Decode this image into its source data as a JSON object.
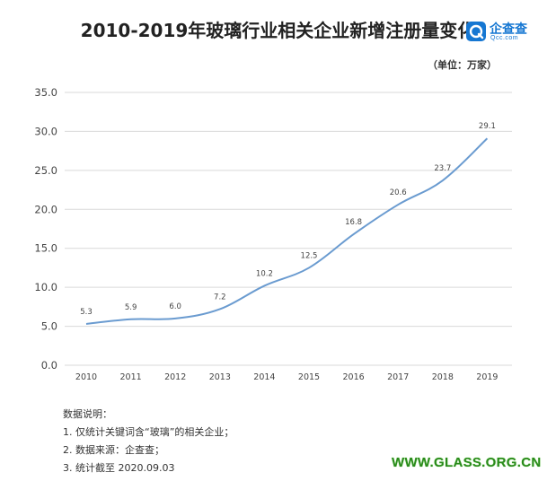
{
  "chart_data": {
    "type": "line",
    "title": "2010-2019年玻璃行业相关企业新增注册量变化",
    "unit_label": "（单位：万家）",
    "categories": [
      "2010",
      "2011",
      "2012",
      "2013",
      "2014",
      "2015",
      "2016",
      "2017",
      "2018",
      "2019"
    ],
    "series": [
      {
        "name": "新增注册量",
        "values": [
          5.3,
          5.9,
          6.0,
          7.2,
          10.2,
          12.5,
          16.8,
          20.6,
          23.7,
          29.1
        ],
        "labels": [
          "5.3",
          "5.9",
          "6.0",
          "7.2",
          "10.2",
          "12.5",
          "16.8",
          "20.6",
          "23.7",
          "29.1"
        ]
      }
    ],
    "ylim": [
      0,
      35
    ],
    "yticks": [
      0,
      5,
      10,
      15,
      20,
      25,
      30,
      35
    ],
    "ytick_labels": [
      "0.0",
      "5.0",
      "10.0",
      "15.0",
      "20.0",
      "25.0",
      "30.0",
      "35.0"
    ],
    "grid": true,
    "xlabel": "",
    "ylabel": "",
    "line_color": "#6a9bd0"
  },
  "logo": {
    "name": "企查查",
    "sub": "Qcc.com",
    "color": "#1677d2"
  },
  "notes": {
    "heading": "数据说明：",
    "items": [
      "1. 仅统计关键词含“玻璃”的相关企业；",
      "2. 数据来源：企查查；",
      "3. 统计截至 2020.09.03"
    ]
  },
  "watermark": "WWW.GLASS.ORG.CN"
}
